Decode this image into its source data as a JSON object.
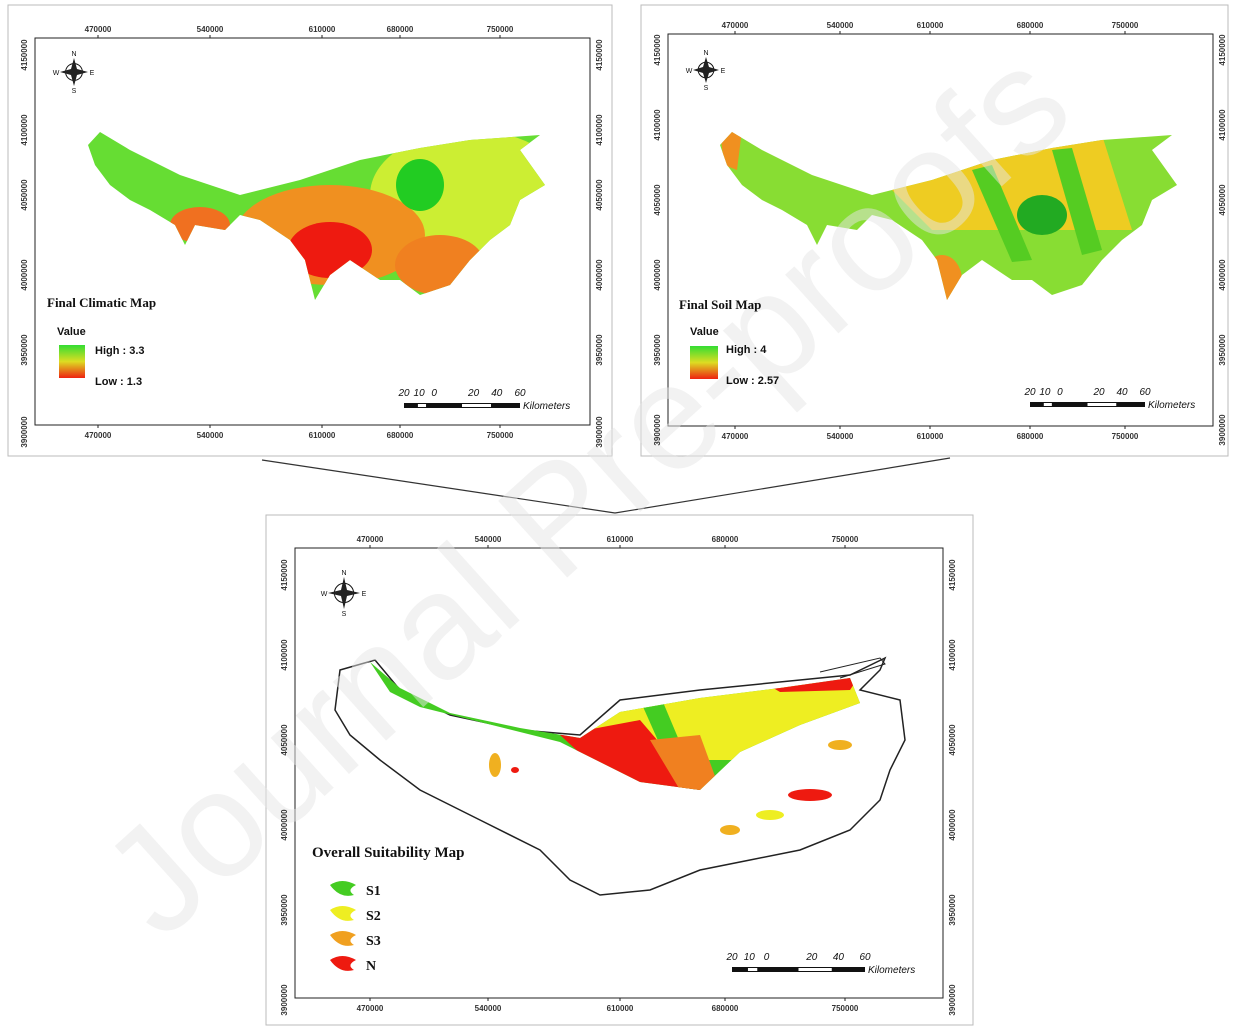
{
  "watermark": "Journal Pre-proofs",
  "compass": {
    "n": "N",
    "s": "S",
    "e": "E",
    "w": "W"
  },
  "panels": [
    {
      "title": "Final Climatic Map",
      "legend": {
        "heading": "Value",
        "high": "High : 3.3",
        "low": "Low : 1.3"
      },
      "x_labels": [
        "470000",
        "540000",
        "610000",
        "680000",
        "750000"
      ],
      "y_labels": [
        "4150000",
        "4100000",
        "4050000",
        "4000000",
        "3950000",
        "3900000"
      ],
      "scale": {
        "ticks": [
          "20",
          "10",
          "0",
          "20",
          "40",
          "60"
        ],
        "unit": "Kilometers"
      }
    },
    {
      "title": "Final Soil Map",
      "legend": {
        "heading": "Value",
        "high": "High : 4",
        "low": "Low : 2.57"
      },
      "x_labels": [
        "470000",
        "540000",
        "610000",
        "680000",
        "750000"
      ],
      "y_labels": [
        "4150000",
        "4100000",
        "4050000",
        "4000000",
        "3950000",
        "3900000"
      ],
      "scale": {
        "ticks": [
          "20",
          "10",
          "0",
          "20",
          "40",
          "60"
        ],
        "unit": "Kilometers"
      }
    },
    {
      "title": "Overall Suitability Map",
      "legend": {
        "items": [
          "S1",
          "S2",
          "S3",
          "N"
        ]
      },
      "x_labels": [
        "470000",
        "540000",
        "610000",
        "680000",
        "750000"
      ],
      "y_labels": [
        "4150000",
        "4100000",
        "4050000",
        "4000000",
        "3950000",
        "3900000"
      ],
      "scale": {
        "ticks": [
          "20",
          "10",
          "0",
          "20",
          "40",
          "60"
        ],
        "unit": "Kilometers"
      }
    }
  ]
}
